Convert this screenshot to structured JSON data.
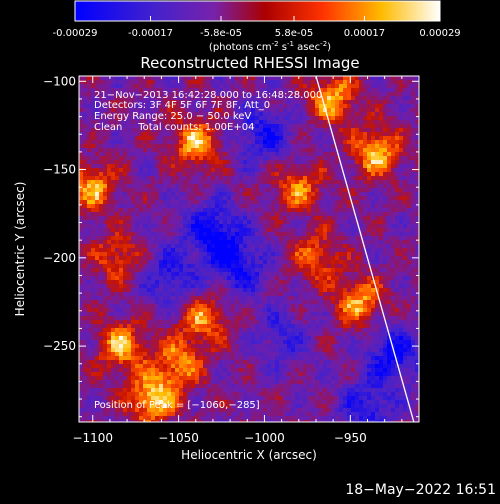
{
  "colorbar": {
    "ticks": [
      "-0.00029",
      "-0.00017",
      "-5.8e-05",
      "5.8e-05",
      "0.00017",
      "0.00029"
    ],
    "tick_values": [
      -0.00029,
      -0.00017,
      -5.8e-05,
      5.8e-05,
      0.00017,
      0.00029
    ],
    "range": [
      -0.00029,
      0.00029
    ],
    "units_main": "(photons cm",
    "units_exp1": "-2",
    "units_mid": " s",
    "units_exp2": "-1",
    "units_end": " asec",
    "units_exp3": "-2",
    "units_close": ")"
  },
  "chart_data": {
    "type": "heatmap",
    "title": "Reconstructed RHESSI Image",
    "xlabel": "Heliocentric X (arcsec)",
    "ylabel": "Heliocentric Y (arcsec)",
    "xlim": [
      -1108,
      -910
    ],
    "ylim": [
      -293,
      -97
    ],
    "xticks": [
      -1100,
      -1050,
      -1000,
      -950
    ],
    "yticks": [
      -100,
      -150,
      -200,
      -250
    ],
    "xtick_labels": [
      "−1100",
      "−1050",
      "−1000",
      "−950"
    ],
    "ytick_labels": [
      "−100",
      "−150",
      "−200",
      "−250"
    ],
    "limb_line": [
      [
        -970,
        -97
      ],
      [
        -913,
        -293
      ]
    ],
    "colormap": [
      "#0000ff",
      "#5500aa",
      "#7722bb",
      "#aa0000",
      "#ff4400",
      "#ffcc00",
      "#ffffff"
    ],
    "hot_spots": [
      {
        "x": -1065,
        "y": -280,
        "v": 0.95
      },
      {
        "x": -1083,
        "y": -250,
        "v": 0.8
      },
      {
        "x": -1100,
        "y": -160,
        "v": 0.75
      },
      {
        "x": -1040,
        "y": -135,
        "v": 0.8
      },
      {
        "x": -1050,
        "y": -260,
        "v": 0.7
      },
      {
        "x": -1035,
        "y": -235,
        "v": 0.7
      },
      {
        "x": -970,
        "y": -200,
        "v": 0.6
      },
      {
        "x": -935,
        "y": -140,
        "v": 0.85
      },
      {
        "x": -945,
        "y": -225,
        "v": 0.75
      },
      {
        "x": -960,
        "y": -110,
        "v": 0.8
      },
      {
        "x": -980,
        "y": -160,
        "v": 0.65
      },
      {
        "x": -1085,
        "y": -200,
        "v": 0.55
      }
    ],
    "cold_spots": [
      {
        "x": -1030,
        "y": -185,
        "v": -0.95
      },
      {
        "x": -1015,
        "y": -205,
        "v": -0.8
      },
      {
        "x": -1000,
        "y": -130,
        "v": -0.75
      },
      {
        "x": -1055,
        "y": -210,
        "v": -0.7
      },
      {
        "x": -925,
        "y": -255,
        "v": -0.85
      },
      {
        "x": -990,
        "y": -245,
        "v": -0.5
      },
      {
        "x": -940,
        "y": -285,
        "v": -0.7
      }
    ]
  },
  "annotation": {
    "line1": "21−Nov−2013 16:42:28.000 to 16:48:28.000",
    "line2": "Detectors: 3F 4F 5F 6F 7F 8F, Att_0",
    "line3": "Energy Range: 25.0 − 50.0 keV",
    "line4": "Clean     Total counts: 1.00E+04",
    "peak": "Position of Peak = [−1060,−285]"
  },
  "timestamp": "18−May−2022 16:51"
}
